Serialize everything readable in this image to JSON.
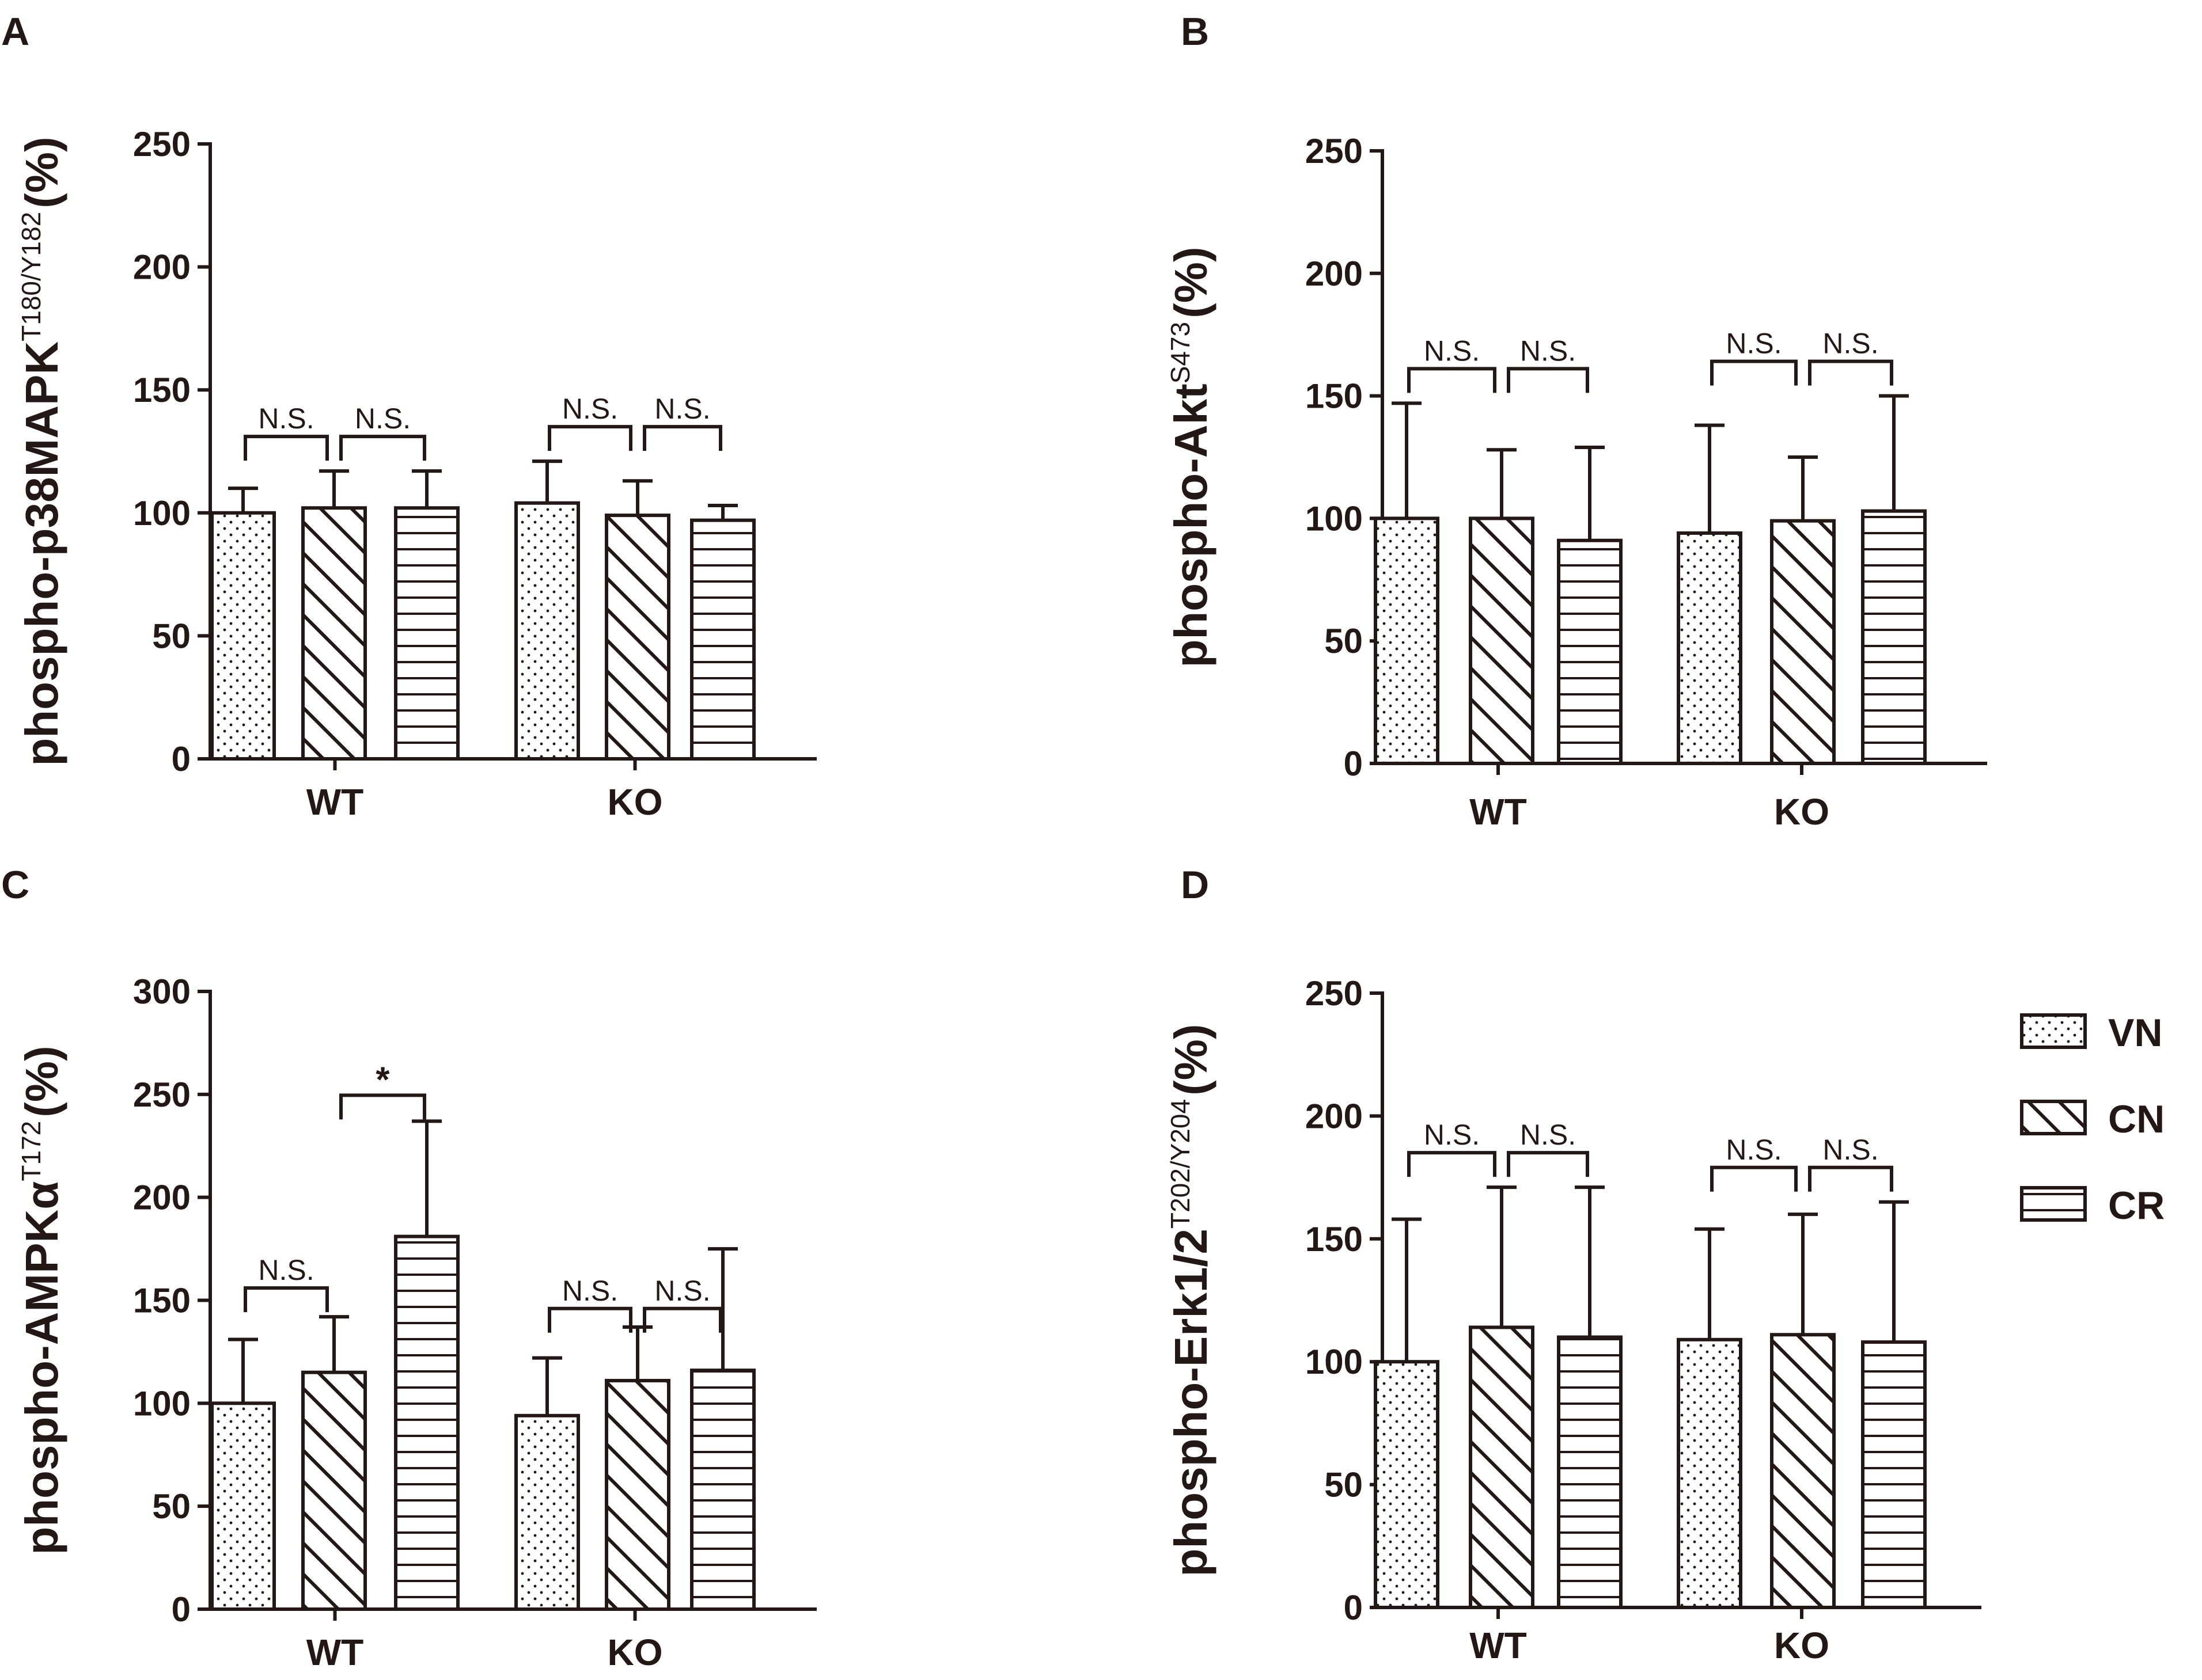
{
  "colors": {
    "ink": "#231815",
    "background": "#ffffff"
  },
  "legend": {
    "items": [
      {
        "key": "VN",
        "label": "VN",
        "pattern": "dots"
      },
      {
        "key": "CN",
        "label": "CN",
        "pattern": "diagonal"
      },
      {
        "key": "CR",
        "label": "CR",
        "pattern": "horizontal"
      }
    ]
  },
  "chart_data": [
    {
      "panel": "A",
      "type": "bar",
      "ylabel_main": "phospho-p38MAPK",
      "ylabel_sup": "T180/Y182",
      "ylabel_unit": "(%)",
      "categories": [
        "WT",
        "KO"
      ],
      "ylim": [
        0,
        250
      ],
      "yticks": [
        0,
        50,
        100,
        150,
        200,
        250
      ],
      "series": [
        {
          "name": "VN",
          "values": [
            100,
            104
          ],
          "errors": [
            10,
            17
          ]
        },
        {
          "name": "CN",
          "values": [
            102,
            99
          ],
          "errors": [
            15,
            14
          ]
        },
        {
          "name": "CR",
          "values": [
            102,
            97
          ],
          "errors": [
            15,
            6
          ]
        }
      ],
      "comparisons": [
        {
          "group": "WT",
          "from": "VN",
          "to": "CN",
          "label": "N.S."
        },
        {
          "group": "WT",
          "from": "CN",
          "to": "CR",
          "label": "N.S."
        },
        {
          "group": "KO",
          "from": "VN",
          "to": "CN",
          "label": "N.S."
        },
        {
          "group": "KO",
          "from": "CN",
          "to": "CR",
          "label": "N.S."
        }
      ]
    },
    {
      "panel": "B",
      "type": "bar",
      "ylabel_main": "phospho-Akt",
      "ylabel_sup": "S473",
      "ylabel_unit": "(%)",
      "categories": [
        "WT",
        "KO"
      ],
      "ylim": [
        0,
        250
      ],
      "yticks": [
        0,
        50,
        100,
        150,
        200,
        250
      ],
      "series": [
        {
          "name": "VN",
          "values": [
            100,
            94
          ],
          "errors": [
            47,
            44
          ]
        },
        {
          "name": "CN",
          "values": [
            100,
            99
          ],
          "errors": [
            28,
            26
          ]
        },
        {
          "name": "CR",
          "values": [
            91,
            103
          ],
          "errors": [
            38,
            47
          ]
        }
      ],
      "comparisons": [
        {
          "group": "WT",
          "from": "VN",
          "to": "CN",
          "label": "N.S."
        },
        {
          "group": "WT",
          "from": "CN",
          "to": "CR",
          "label": "N.S."
        },
        {
          "group": "KO",
          "from": "VN",
          "to": "CN",
          "label": "N.S."
        },
        {
          "group": "KO",
          "from": "CN",
          "to": "CR",
          "label": "N.S."
        }
      ]
    },
    {
      "panel": "C",
      "type": "bar",
      "ylabel_main": "phospho-AMPKα",
      "ylabel_sup": "T172",
      "ylabel_unit": "(%)",
      "categories": [
        "WT",
        "KO"
      ],
      "ylim": [
        0,
        300
      ],
      "yticks": [
        0,
        50,
        100,
        150,
        200,
        250,
        300
      ],
      "series": [
        {
          "name": "VN",
          "values": [
            100,
            94
          ],
          "errors": [
            31,
            28
          ]
        },
        {
          "name": "CN",
          "values": [
            115,
            111
          ],
          "errors": [
            27,
            26
          ]
        },
        {
          "name": "CR",
          "values": [
            181,
            116
          ],
          "errors": [
            56,
            59
          ]
        }
      ],
      "comparisons": [
        {
          "group": "WT",
          "from": "VN",
          "to": "CN",
          "label": "N.S."
        },
        {
          "group": "WT",
          "from": "CN",
          "to": "CR",
          "label": "*"
        },
        {
          "group": "KO",
          "from": "VN",
          "to": "CN",
          "label": "N.S."
        },
        {
          "group": "KO",
          "from": "CN",
          "to": "CR",
          "label": "N.S."
        }
      ]
    },
    {
      "panel": "D",
      "type": "bar",
      "ylabel_main": "phospho-Erk1/2",
      "ylabel_sup": "T202/Y204",
      "ylabel_unit": "(%)",
      "categories": [
        "WT",
        "KO"
      ],
      "ylim": [
        0,
        250
      ],
      "yticks": [
        0,
        50,
        100,
        150,
        200,
        250
      ],
      "series": [
        {
          "name": "VN",
          "values": [
            100,
            109
          ],
          "errors": [
            58,
            45
          ]
        },
        {
          "name": "CN",
          "values": [
            114,
            111
          ],
          "errors": [
            57,
            49
          ]
        },
        {
          "name": "CR",
          "values": [
            110,
            108
          ],
          "errors": [
            61,
            57
          ]
        }
      ],
      "comparisons": [
        {
          "group": "WT",
          "from": "VN",
          "to": "CN",
          "label": "N.S."
        },
        {
          "group": "WT",
          "from": "CN",
          "to": "CR",
          "label": "N.S."
        },
        {
          "group": "KO",
          "from": "VN",
          "to": "CN",
          "label": "N.S."
        },
        {
          "group": "KO",
          "from": "CN",
          "to": "CR",
          "label": "N.S."
        }
      ]
    }
  ]
}
